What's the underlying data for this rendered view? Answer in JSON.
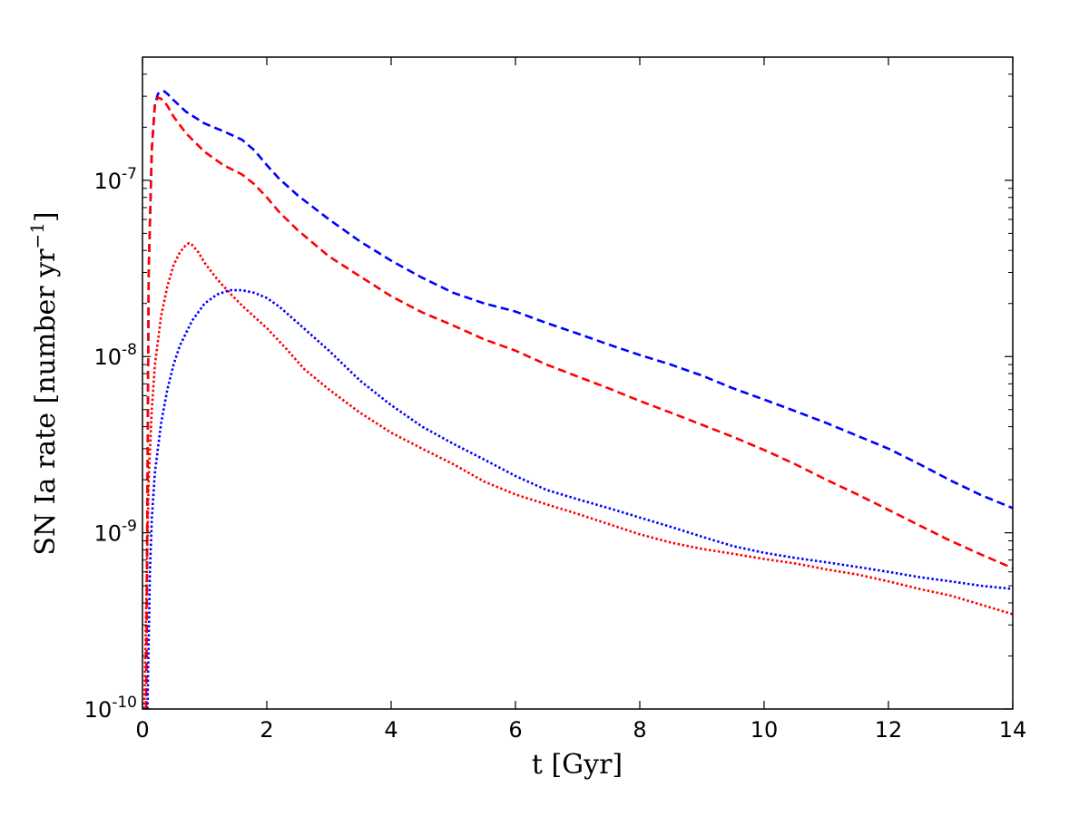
{
  "chart_data": {
    "type": "line",
    "xlabel": "t [Gyr]",
    "ylabel": {
      "main": "SN Ia rate [number yr",
      "sup": "−1",
      "close": "]"
    },
    "x_scale": "linear",
    "y_scale": "log",
    "xlim": [
      0,
      14
    ],
    "ylim": [
      1e-10,
      5e-07
    ],
    "grid": false,
    "legend": "none",
    "x_ticks": [
      {
        "value": 0,
        "label": "0"
      },
      {
        "value": 2,
        "label": "2"
      },
      {
        "value": 4,
        "label": "4"
      },
      {
        "value": 6,
        "label": "6"
      },
      {
        "value": 8,
        "label": "8"
      },
      {
        "value": 10,
        "label": "10"
      },
      {
        "value": 12,
        "label": "12"
      },
      {
        "value": 14,
        "label": "14"
      }
    ],
    "y_ticks": [
      {
        "value": 1e-10,
        "base": "10",
        "exp": "-10"
      },
      {
        "value": 1e-09,
        "base": "10",
        "exp": "-9"
      },
      {
        "value": 1e-08,
        "base": "10",
        "exp": "-8"
      },
      {
        "value": 1e-07,
        "base": "10",
        "exp": "-7"
      }
    ],
    "series": [
      {
        "color": "#0000ff",
        "style": "dashed",
        "x": [
          0.06,
          0.1,
          0.15,
          0.2,
          0.25,
          0.3,
          0.35,
          0.4,
          0.5,
          0.7,
          1.0,
          1.3,
          1.6,
          1.8,
          2.0,
          2.2,
          2.5,
          3.0,
          3.5,
          4.0,
          4.5,
          5.0,
          5.5,
          6.0,
          6.5,
          7.0,
          7.5,
          8.0,
          8.5,
          9.0,
          9.5,
          10.0,
          10.5,
          11.0,
          11.5,
          12.0,
          12.5,
          13.0,
          13.5,
          14.0
        ],
        "y": [
          1e-10,
          3e-08,
          1.5e-07,
          2.7e-07,
          3.1e-07,
          3.2e-07,
          3.2e-07,
          3.1e-07,
          2.85e-07,
          2.45e-07,
          2.1e-07,
          1.9e-07,
          1.7e-07,
          1.48e-07,
          1.22e-07,
          1.02e-07,
          8.2e-08,
          6e-08,
          4.5e-08,
          3.5e-08,
          2.8e-08,
          2.3e-08,
          2e-08,
          1.8e-08,
          1.55e-08,
          1.35e-08,
          1.17e-08,
          1.02e-08,
          9e-09,
          7.8e-09,
          6.6e-09,
          5.7e-09,
          4.9e-09,
          4.2e-09,
          3.55e-09,
          3e-09,
          2.45e-09,
          1.98e-09,
          1.63e-09,
          1.38e-09
        ]
      },
      {
        "color": "#ff0000",
        "style": "dashed",
        "x": [
          0.06,
          0.1,
          0.15,
          0.2,
          0.25,
          0.3,
          0.35,
          0.4,
          0.5,
          0.7,
          1.0,
          1.3,
          1.6,
          1.8,
          2.0,
          2.2,
          2.5,
          3.0,
          3.5,
          4.0,
          4.5,
          5.0,
          5.5,
          6.0,
          6.5,
          7.0,
          7.5,
          8.0,
          8.5,
          9.0,
          9.5,
          10.0,
          10.5,
          11.0,
          11.5,
          12.0,
          12.5,
          13.0,
          13.5,
          14.0
        ],
        "y": [
          1e-10,
          3e-08,
          1.5e-07,
          2.7e-07,
          2.95e-07,
          2.9e-07,
          2.8e-07,
          2.65e-07,
          2.3e-07,
          1.85e-07,
          1.45e-07,
          1.22e-07,
          1.08e-07,
          9.5e-08,
          8e-08,
          6.6e-08,
          5.2e-08,
          3.7e-08,
          2.85e-08,
          2.2e-08,
          1.78e-08,
          1.5e-08,
          1.25e-08,
          1.08e-08,
          9e-09,
          7.7e-09,
          6.6e-09,
          5.6e-09,
          4.8e-09,
          4.1e-09,
          3.5e-09,
          2.95e-09,
          2.45e-09,
          2e-09,
          1.65e-09,
          1.35e-09,
          1.1e-09,
          9e-10,
          7.5e-10,
          6.3e-10
        ]
      },
      {
        "color": "#ff0000",
        "style": "dotted",
        "x": [
          0.03,
          0.07,
          0.1,
          0.15,
          0.2,
          0.3,
          0.4,
          0.5,
          0.6,
          0.7,
          0.75,
          0.8,
          0.9,
          1.0,
          1.2,
          1.4,
          1.6,
          1.8,
          2.0,
          2.3,
          2.6,
          3.0,
          3.5,
          4.0,
          4.5,
          5.0,
          5.5,
          6.0,
          6.5,
          7.0,
          7.5,
          8.0,
          8.5,
          9.0,
          9.5,
          10.0,
          10.5,
          11.0,
          11.5,
          12.0,
          12.5,
          13.0,
          13.5,
          14.0
        ],
        "y": [
          1e-10,
          6e-10,
          2e-09,
          5e-09,
          9e-09,
          1.7e-08,
          2.5e-08,
          3.3e-08,
          3.9e-08,
          4.3e-08,
          4.4e-08,
          4.3e-08,
          3.9e-08,
          3.4e-08,
          2.75e-08,
          2.3e-08,
          1.95e-08,
          1.68e-08,
          1.45e-08,
          1.12e-08,
          8.5e-09,
          6.5e-09,
          4.8e-09,
          3.7e-09,
          3e-09,
          2.45e-09,
          1.95e-09,
          1.65e-09,
          1.45e-09,
          1.28e-09,
          1.12e-09,
          9.8e-10,
          8.8e-10,
          8.1e-10,
          7.6e-10,
          7.1e-10,
          6.7e-10,
          6.2e-10,
          5.8e-10,
          5.3e-10,
          4.8e-10,
          4.4e-10,
          3.9e-10,
          3.45e-10
        ]
      },
      {
        "color": "#0000ff",
        "style": "dotted",
        "x": [
          0.08,
          0.12,
          0.15,
          0.2,
          0.3,
          0.4,
          0.5,
          0.6,
          0.8,
          1.0,
          1.2,
          1.4,
          1.6,
          1.8,
          2.0,
          2.2,
          2.5,
          3.0,
          3.5,
          4.0,
          4.5,
          5.0,
          5.5,
          6.0,
          6.5,
          7.0,
          7.5,
          8.0,
          8.5,
          9.0,
          9.5,
          10.0,
          10.5,
          11.0,
          11.5,
          12.0,
          12.5,
          13.0,
          13.5,
          14.0
        ],
        "y": [
          1e-10,
          6e-10,
          1.2e-09,
          2.2e-09,
          4.2e-09,
          6.5e-09,
          9e-09,
          1.15e-08,
          1.6e-08,
          2e-08,
          2.25e-08,
          2.38e-08,
          2.38e-08,
          2.3e-08,
          2.15e-08,
          1.92e-08,
          1.55e-08,
          1.08e-08,
          7.3e-09,
          5.3e-09,
          4e-09,
          3.2e-09,
          2.6e-09,
          2.1e-09,
          1.75e-09,
          1.55e-09,
          1.38e-09,
          1.22e-09,
          1.08e-09,
          9.5e-10,
          8.4e-10,
          7.7e-10,
          7.2e-10,
          6.8e-10,
          6.4e-10,
          6e-10,
          5.6e-10,
          5.3e-10,
          5e-10,
          4.8e-10
        ]
      }
    ]
  }
}
